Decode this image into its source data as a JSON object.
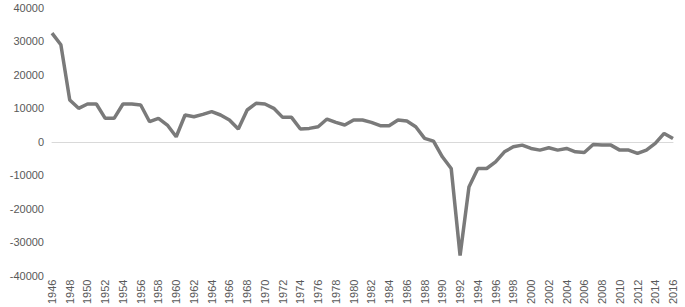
{
  "chart_data": {
    "type": "line",
    "categories": [
      1946,
      null,
      1948,
      null,
      1950,
      null,
      1952,
      null,
      1954,
      null,
      1956,
      null,
      1958,
      null,
      1960,
      null,
      1962,
      null,
      1964,
      null,
      1966,
      null,
      1968,
      null,
      1970,
      null,
      1972,
      null,
      1974,
      null,
      1976,
      null,
      1978,
      null,
      1980,
      null,
      1982,
      null,
      1984,
      null,
      1986,
      null,
      1988,
      null,
      1990,
      null,
      1992,
      null,
      1994,
      null,
      1996,
      null,
      1998,
      null,
      2000,
      null,
      2002,
      null,
      2004,
      null,
      2006,
      null,
      2008,
      null,
      2010,
      null,
      2012,
      null,
      2014,
      null,
      2016
    ],
    "values": [
      32500,
      29000,
      12500,
      10000,
      11300,
      11300,
      7000,
      7000,
      11300,
      11300,
      11000,
      6000,
      7000,
      5000,
      1500,
      8000,
      7500,
      8200,
      9000,
      8000,
      6500,
      3800,
      9500,
      11500,
      11300,
      10000,
      7300,
      7300,
      3800,
      4000,
      4500,
      6800,
      5800,
      5000,
      6500,
      6500,
      5800,
      4800,
      4800,
      6500,
      6200,
      4500,
      1000,
      200,
      -4500,
      -8000,
      -34000,
      -13500,
      -8000,
      -8000,
      -6000,
      -3000,
      -1500,
      -1000,
      -2000,
      -2500,
      -1800,
      -2500,
      -2000,
      -3000,
      -3200,
      -800,
      -1000,
      -1000,
      -2500,
      -2500,
      -3500,
      -2500,
      -500,
      2500,
      1000
    ],
    "color": "#7a7a7a",
    "ylim": [
      -40000,
      40000
    ],
    "yticks": [
      -40000,
      -30000,
      -20000,
      -10000,
      0,
      10000,
      20000,
      30000,
      40000
    ],
    "grid": false
  }
}
